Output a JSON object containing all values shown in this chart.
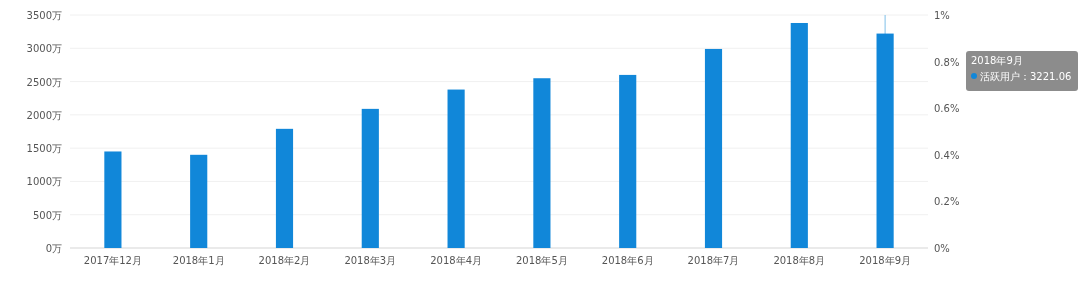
{
  "chart_data": {
    "type": "bar",
    "categories": [
      "2017年12月",
      "2018年1月",
      "2018年2月",
      "2018年3月",
      "2018年4月",
      "2018年5月",
      "2018年6月",
      "2018年7月",
      "2018年8月",
      "2018年9月"
    ],
    "series": [
      {
        "color": "#1187d9",
        "values": [
          1450,
          1400,
          1790,
          2090,
          2380,
          2550,
          2600,
          2990,
          3380,
          3221.06
        ]
      }
    ],
    "ylim": [
      0,
      3500
    ],
    "yticks": [
      {
        "value": 0,
        "label": "0万"
      },
      {
        "value": 500,
        "label": "500万"
      },
      {
        "value": 1000,
        "label": "1000万"
      },
      {
        "value": 1500,
        "label": "1500万"
      },
      {
        "value": 2000,
        "label": "2000万"
      },
      {
        "value": 2500,
        "label": "2500万"
      },
      {
        "value": 3000,
        "label": "3000万"
      },
      {
        "value": 3500,
        "label": "3500万"
      }
    ],
    "y2lim": [
      0,
      1
    ],
    "y2ticks": [
      {
        "value": 0,
        "label": "0%"
      },
      {
        "value": 0.2,
        "label": "0.2%"
      },
      {
        "value": 0.4,
        "label": "0.4%"
      },
      {
        "value": 0.6,
        "label": "0.6%"
      },
      {
        "value": 0.8,
        "label": "0.8%"
      },
      {
        "value": 1,
        "label": "1%"
      }
    ],
    "grid": "y",
    "ref_lines": [
      {
        "axis": "x",
        "value": "2018年9月",
        "color": "#7fbfe8"
      }
    ],
    "annotations": [
      "2018年9月",
      "活跃用户：3221.06"
    ]
  }
}
